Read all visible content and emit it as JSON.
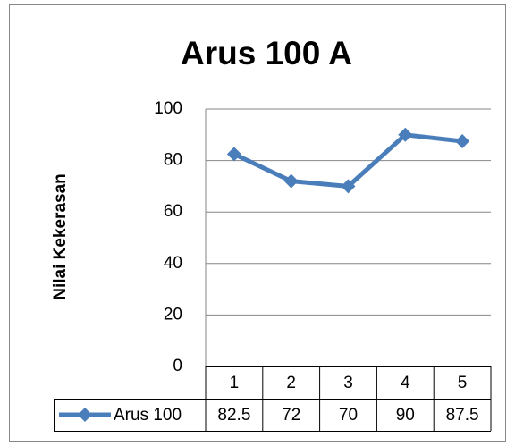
{
  "chart_data": {
    "type": "line",
    "title": "Arus 100 A",
    "y_label": "Nilai Kekerasan",
    "categories": [
      "1",
      "2",
      "3",
      "4",
      "5"
    ],
    "series": [
      {
        "name": "Arus 100",
        "color": "#4a7ebb",
        "values": [
          82.5,
          72,
          70,
          90,
          87.5
        ]
      }
    ],
    "ylim": [
      0,
      100
    ],
    "yticks": [
      0,
      20,
      40,
      60,
      80,
      100
    ],
    "grid": true,
    "data_table": true
  }
}
